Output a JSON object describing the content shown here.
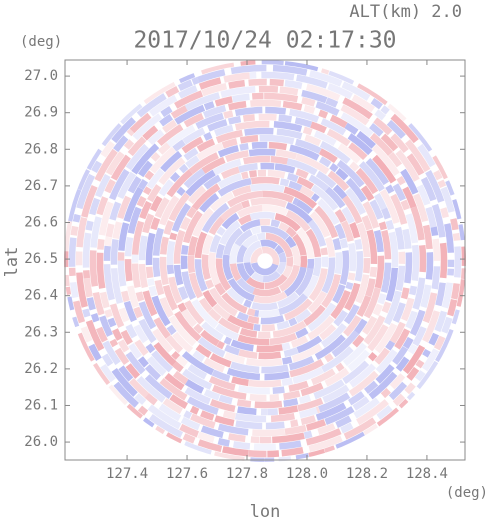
{
  "chart_data": {
    "type": "image",
    "title": "2017/10/24 02:17:30",
    "subtitle": "ALT(km) 2.0",
    "x_label": "lon",
    "y_label": "lat",
    "x_unit": "(deg)",
    "y_unit": "(deg)",
    "xlim": [
      127.193,
      128.527
    ],
    "ylim": [
      25.951,
      27.044
    ],
    "xticks": [
      127.4,
      127.6,
      127.8,
      {
        "value": 128.0,
        "label": "128.0"
      },
      128.2,
      128.4
    ],
    "yticks": [
      {
        "value": 26.0,
        "label": "26.0"
      },
      26.1,
      26.2,
      26.3,
      26.4,
      26.5,
      26.6,
      26.7,
      26.8,
      26.9,
      {
        "value": 27.0,
        "label": "27.0"
      }
    ]
  }
}
